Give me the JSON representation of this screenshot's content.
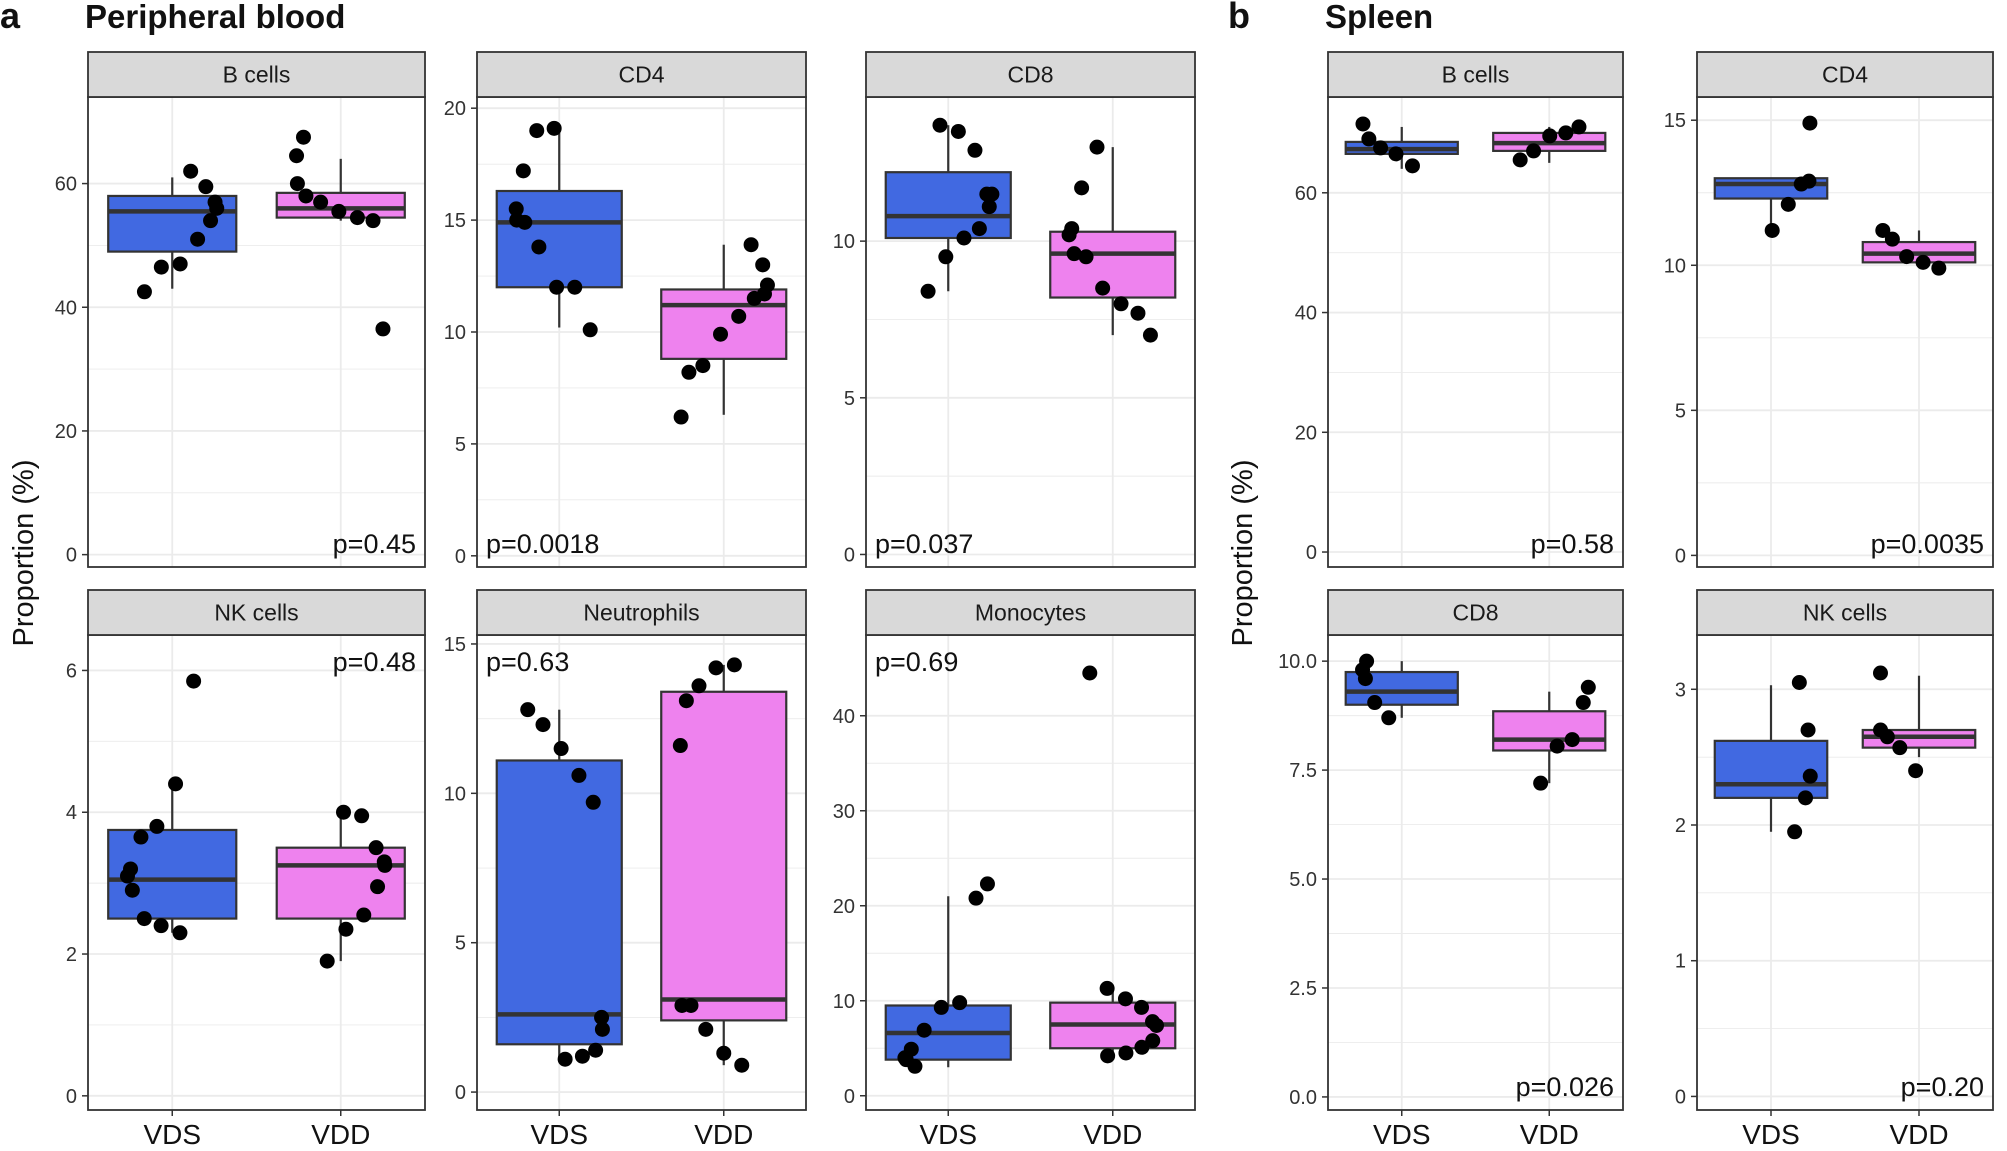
{
  "figure": {
    "sections": [
      {
        "letter": "a",
        "title": "Peripheral blood"
      },
      {
        "letter": "b",
        "title": "Spleen"
      }
    ],
    "ylabel": "Proportion (%)",
    "groups": [
      "VDS",
      "VDD"
    ]
  },
  "colors": {
    "VDS": "#4169e1",
    "VDD": "#ee82ee",
    "panel_border": "#333333",
    "strip_fill": "#d9d9d9",
    "grid": "#ebebeb",
    "point": "#000000",
    "box_line": "#333333"
  },
  "chart_data": [
    {
      "type": "boxplot",
      "section": "a",
      "title": "B cells",
      "ylim": [
        -2,
        74
      ],
      "yticks": [
        0,
        20,
        40,
        60
      ],
      "ytick_labels": [
        "0",
        "20",
        "40",
        "60"
      ],
      "pvalue": "p=0.45",
      "pvalue_position": "bottom-right",
      "groups": [
        {
          "name": "VDS",
          "min": 43,
          "q1": 49,
          "median": 55.5,
          "q3": 58,
          "max": 61,
          "points": [
            62,
            59.5,
            57,
            56,
            54,
            51,
            47,
            46.5,
            42.5
          ]
        },
        {
          "name": "VDD",
          "min": 54,
          "q1": 54.5,
          "median": 56,
          "q3": 58.5,
          "max": 64,
          "points": [
            67.5,
            64.5,
            60,
            58,
            57,
            55.5,
            54.5,
            54,
            36.5
          ]
        }
      ]
    },
    {
      "type": "boxplot",
      "section": "a",
      "title": "CD4",
      "ylim": [
        -0.5,
        20.5
      ],
      "yticks": [
        0,
        5,
        10,
        15,
        20
      ],
      "ytick_labels": [
        "0",
        "5",
        "10",
        "15",
        "20"
      ],
      "pvalue": "p=0.0018",
      "pvalue_position": "bottom-left",
      "groups": [
        {
          "name": "VDS",
          "min": 10.2,
          "q1": 12,
          "median": 14.9,
          "q3": 16.3,
          "max": 19,
          "points": [
            19.1,
            19,
            17.2,
            15.5,
            15,
            14.9,
            13.8,
            12,
            12,
            10.1
          ]
        },
        {
          "name": "VDD",
          "min": 6.3,
          "q1": 8.8,
          "median": 11.2,
          "q3": 11.9,
          "max": 13.9,
          "points": [
            13.9,
            13,
            12.1,
            11.7,
            11.5,
            10.7,
            9.9,
            8.5,
            8.2,
            6.2
          ]
        }
      ]
    },
    {
      "type": "boxplot",
      "section": "a",
      "title": "CD8",
      "ylim": [
        -0.4,
        14.6
      ],
      "yticks": [
        0,
        5,
        10
      ],
      "ytick_labels": [
        "0",
        "5",
        "10"
      ],
      "pvalue": "p=0.037",
      "pvalue_position": "bottom-left",
      "groups": [
        {
          "name": "VDS",
          "min": 8.4,
          "q1": 10.1,
          "median": 10.8,
          "q3": 12.2,
          "max": 13.7,
          "points": [
            13.7,
            13.5,
            12.9,
            11.5,
            11.5,
            11.1,
            10.4,
            10.1,
            9.5,
            8.4
          ]
        },
        {
          "name": "VDD",
          "min": 7,
          "q1": 8.2,
          "median": 9.6,
          "q3": 10.3,
          "max": 13,
          "points": [
            13,
            11.7,
            10.4,
            10.2,
            9.6,
            9.5,
            8.5,
            8,
            7.7,
            7
          ]
        }
      ]
    },
    {
      "type": "boxplot",
      "section": "a",
      "title": "NK cells",
      "ylim": [
        -0.2,
        6.5
      ],
      "yticks": [
        0,
        2,
        4,
        6
      ],
      "ytick_labels": [
        "0",
        "2",
        "4",
        "6"
      ],
      "pvalue": "p=0.48",
      "pvalue_position": "top-right",
      "groups": [
        {
          "name": "VDS",
          "min": 2.3,
          "q1": 2.5,
          "median": 3.05,
          "q3": 3.75,
          "max": 4.4,
          "points": [
            5.85,
            4.4,
            3.8,
            3.65,
            3.2,
            3.1,
            2.9,
            2.5,
            2.4,
            2.3
          ]
        },
        {
          "name": "VDD",
          "min": 1.9,
          "q1": 2.5,
          "median": 3.25,
          "q3": 3.5,
          "max": 4,
          "points": [
            4,
            3.95,
            3.5,
            3.3,
            3.25,
            2.95,
            2.55,
            2.35,
            1.9
          ]
        }
      ]
    },
    {
      "type": "boxplot",
      "section": "a",
      "title": "Neutrophils",
      "ylim": [
        -0.6,
        15.3
      ],
      "yticks": [
        0,
        5,
        10,
        15
      ],
      "ytick_labels": [
        "0",
        "5",
        "10",
        "15"
      ],
      "pvalue": "p=0.63",
      "pvalue_position": "top-left",
      "groups": [
        {
          "name": "VDS",
          "min": 1.1,
          "q1": 1.6,
          "median": 2.6,
          "q3": 11.1,
          "max": 12.8,
          "points": [
            12.8,
            12.3,
            11.5,
            10.6,
            9.7,
            2.5,
            2.1,
            1.4,
            1.2,
            1.1
          ]
        },
        {
          "name": "VDD",
          "min": 0.9,
          "q1": 2.4,
          "median": 3.1,
          "q3": 13.4,
          "max": 14.3,
          "points": [
            14.3,
            14.2,
            13.6,
            13.1,
            11.6,
            2.9,
            2.9,
            2.1,
            1.3,
            0.9
          ]
        }
      ]
    },
    {
      "type": "boxplot",
      "section": "a",
      "title": "Monocytes",
      "ylim": [
        -1.5,
        48.5
      ],
      "yticks": [
        0,
        10,
        20,
        30,
        40
      ],
      "ytick_labels": [
        "0",
        "10",
        "20",
        "30",
        "40"
      ],
      "pvalue": "p=0.69",
      "pvalue_position": "top-left",
      "groups": [
        {
          "name": "VDS",
          "min": 3,
          "q1": 3.8,
          "median": 6.6,
          "q3": 9.5,
          "max": 21,
          "points": [
            22.3,
            20.8,
            9.8,
            9.3,
            6.9,
            4.9,
            4,
            3.8,
            3.1
          ]
        },
        {
          "name": "VDD",
          "min": 4.3,
          "q1": 5,
          "median": 7.5,
          "q3": 9.8,
          "max": 11.3,
          "points": [
            44.5,
            11.3,
            10.2,
            9.3,
            7.8,
            7.4,
            5.8,
            5.1,
            4.5,
            4.2
          ]
        }
      ]
    },
    {
      "type": "boxplot",
      "section": "b",
      "title": "B cells",
      "ylim": [
        -2.5,
        76
      ],
      "yticks": [
        0,
        20,
        40,
        60
      ],
      "ytick_labels": [
        "0",
        "20",
        "40",
        "60"
      ],
      "pvalue": "p=0.58",
      "pvalue_position": "bottom-right",
      "groups": [
        {
          "name": "VDS",
          "min": 64,
          "q1": 66.5,
          "median": 67.3,
          "q3": 68.5,
          "max": 71,
          "points": [
            71.5,
            69,
            67.5,
            66.5,
            64.5
          ]
        },
        {
          "name": "VDD",
          "min": 65,
          "q1": 67,
          "median": 68.3,
          "q3": 70,
          "max": 71,
          "points": [
            71,
            70,
            69.5,
            67,
            65.5
          ]
        }
      ]
    },
    {
      "type": "boxplot",
      "section": "b",
      "title": "CD4",
      "ylim": [
        -0.4,
        15.8
      ],
      "yticks": [
        0,
        5,
        10,
        15
      ],
      "ytick_labels": [
        "0",
        "5",
        "10",
        "15"
      ],
      "pvalue": "p=0.0035",
      "pvalue_position": "bottom-right",
      "groups": [
        {
          "name": "VDS",
          "min": 11.3,
          "q1": 12.3,
          "median": 12.8,
          "q3": 13,
          "max": 13,
          "points": [
            14.9,
            12.9,
            12.8,
            12.1,
            11.2
          ]
        },
        {
          "name": "VDD",
          "min": 10,
          "q1": 10.1,
          "median": 10.4,
          "q3": 10.8,
          "max": 11.2,
          "points": [
            11.2,
            10.9,
            10.3,
            10.1,
            9.9
          ]
        }
      ]
    },
    {
      "type": "boxplot",
      "section": "b",
      "title": "CD8",
      "ylim": [
        -0.3,
        10.6
      ],
      "yticks": [
        0,
        2.5,
        5,
        7.5,
        10
      ],
      "ytick_labels": [
        "0.0",
        "2.5",
        "5.0",
        "7.5",
        "10.0"
      ],
      "pvalue": "p=0.026",
      "pvalue_position": "bottom-right",
      "groups": [
        {
          "name": "VDS",
          "min": 8.7,
          "q1": 9,
          "median": 9.3,
          "q3": 9.75,
          "max": 10,
          "points": [
            10,
            9.8,
            9.6,
            9.05,
            8.7
          ]
        },
        {
          "name": "VDD",
          "min": 7.2,
          "q1": 7.95,
          "median": 8.2,
          "q3": 8.85,
          "max": 9.3,
          "points": [
            9.4,
            9.05,
            8.2,
            8.05,
            7.2
          ]
        }
      ]
    },
    {
      "type": "boxplot",
      "section": "b",
      "title": "NK cells",
      "ylim": [
        -0.1,
        3.4
      ],
      "yticks": [
        0,
        1,
        2,
        3
      ],
      "ytick_labels": [
        "0",
        "1",
        "2",
        "3"
      ],
      "pvalue": "p=0.20",
      "pvalue_position": "bottom-right",
      "groups": [
        {
          "name": "VDS",
          "min": 1.95,
          "q1": 2.2,
          "median": 2.3,
          "q3": 2.62,
          "max": 3.03,
          "points": [
            3.05,
            2.7,
            2.36,
            2.2,
            1.95
          ]
        },
        {
          "name": "VDD",
          "min": 2.5,
          "q1": 2.57,
          "median": 2.65,
          "q3": 2.7,
          "max": 3.1,
          "points": [
            3.12,
            2.7,
            2.65,
            2.57,
            2.4
          ]
        }
      ]
    }
  ]
}
